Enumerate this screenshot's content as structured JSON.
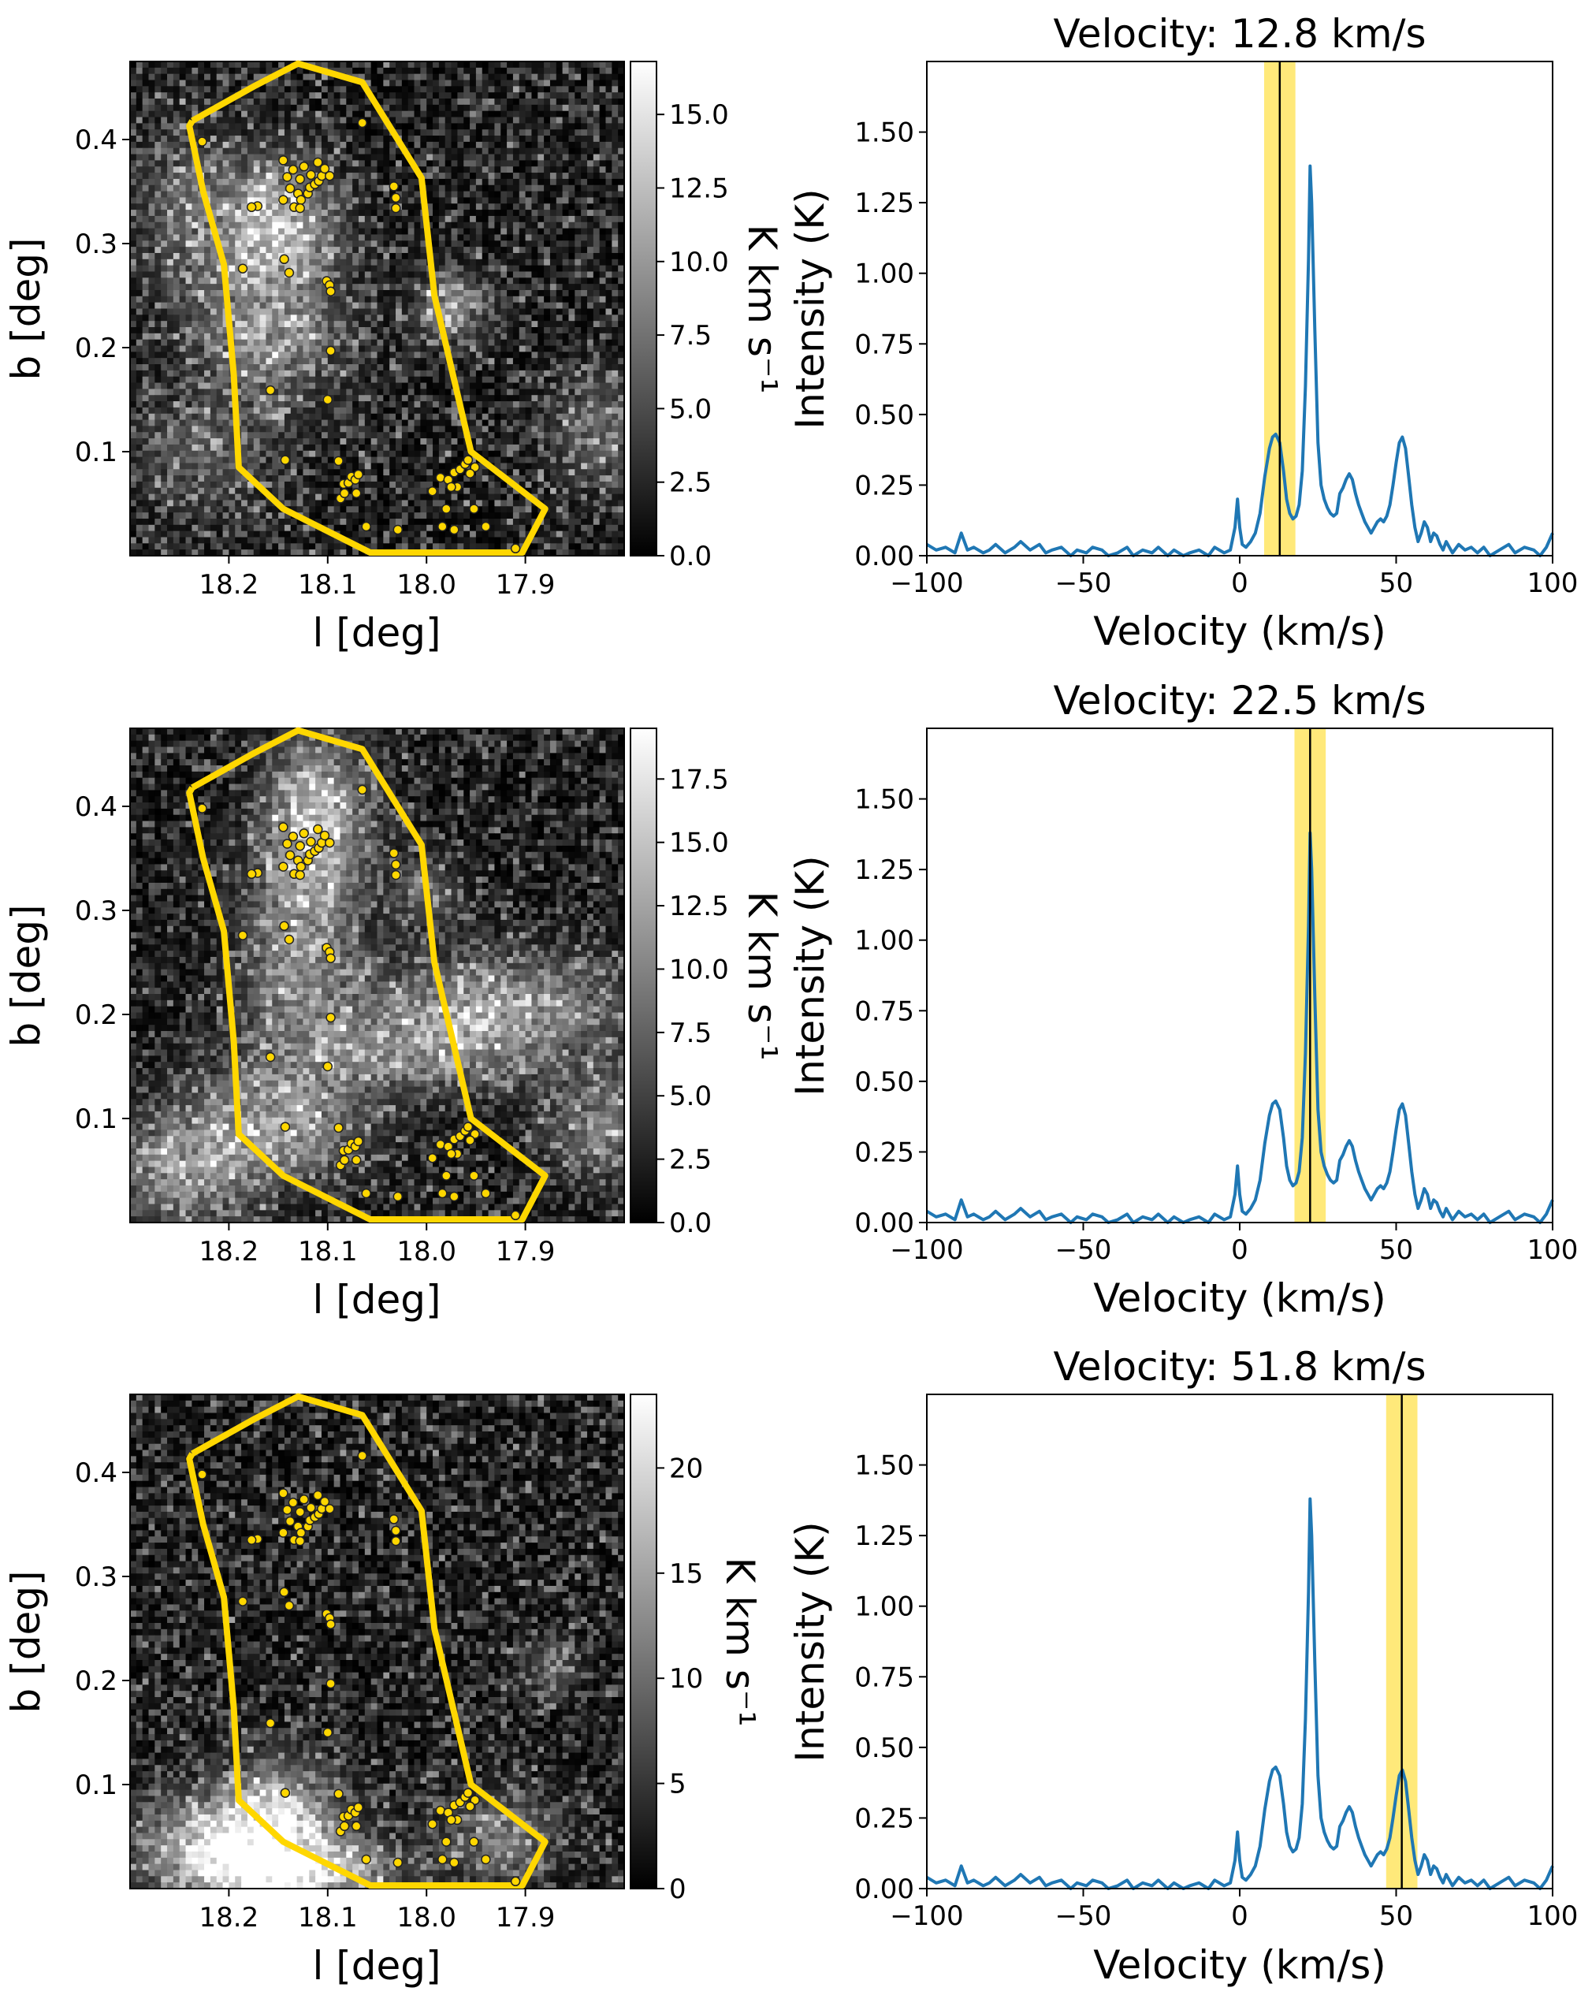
{
  "chart_data": {
    "maps": [
      {
        "type": "heatmap",
        "xlabel": "l [deg]",
        "ylabel": "b [deg]",
        "x_ticks": [
          "18.2",
          "18.1",
          "18.0",
          "17.9"
        ],
        "y_ticks": [
          "0.1",
          "0.2",
          "0.3",
          "0.4"
        ],
        "colorbar_label": "K km s⁻¹",
        "colorbar_ticks": [
          "0.0",
          "2.5",
          "5.0",
          "7.5",
          "10.0",
          "12.5",
          "15.0"
        ],
        "colorbar_range": [
          0,
          16.8
        ],
        "colormap": "gray",
        "region_color": "#FFD700"
      },
      {
        "type": "heatmap",
        "xlabel": "l [deg]",
        "ylabel": "b [deg]",
        "x_ticks": [
          "18.2",
          "18.1",
          "18.0",
          "17.9"
        ],
        "y_ticks": [
          "0.1",
          "0.2",
          "0.3",
          "0.4"
        ],
        "colorbar_label": "K km s⁻¹",
        "colorbar_ticks": [
          "0.0",
          "2.5",
          "5.0",
          "7.5",
          "10.0",
          "12.5",
          "15.0",
          "17.5"
        ],
        "colorbar_range": [
          0,
          19.5
        ],
        "colormap": "gray",
        "region_color": "#FFD700"
      },
      {
        "type": "heatmap",
        "xlabel": "l [deg]",
        "ylabel": "b [deg]",
        "x_ticks": [
          "18.2",
          "18.1",
          "18.0",
          "17.9"
        ],
        "y_ticks": [
          "0.1",
          "0.2",
          "0.3",
          "0.4"
        ],
        "colorbar_label": "K km s⁻¹",
        "colorbar_ticks": [
          "0",
          "5",
          "10",
          "15",
          "20"
        ],
        "colorbar_range": [
          0,
          23.5
        ],
        "colormap": "gray",
        "region_color": "#FFD700"
      }
    ],
    "region_polygon": {
      "l": [
        18.237,
        18.173,
        18.13,
        18.065,
        18.005,
        17.992,
        17.955,
        17.88,
        17.903,
        18.057,
        18.145,
        18.19,
        18.195,
        18.205,
        18.226,
        18.24
      ],
      "b": [
        0.418,
        0.452,
        0.473,
        0.455,
        0.363,
        0.25,
        0.1,
        0.045,
        0.003,
        0.003,
        0.045,
        0.085,
        0.173,
        0.28,
        0.35,
        0.413
      ]
    },
    "sources": {
      "l": [
        18.227,
        18.171,
        18.177,
        18.145,
        18.138,
        18.13,
        18.127,
        18.12,
        18.118,
        18.113,
        18.109,
        18.106,
        18.141,
        18.135,
        18.128,
        18.124,
        18.117,
        18.11,
        18.103,
        18.098,
        18.145,
        18.134,
        18.128,
        18.186,
        18.144,
        18.139,
        18.101,
        18.098,
        18.097,
        18.097,
        18.158,
        18.143,
        18.1,
        18.065,
        18.033,
        18.031,
        18.031,
        18.089,
        18.084,
        18.079,
        18.076,
        18.072,
        18.069,
        18.087,
        18.083,
        18.071,
        18.061,
        18.029,
        17.994,
        17.986,
        17.978,
        17.972,
        17.966,
        17.961,
        17.958,
        17.951,
        17.956,
        17.969,
        17.975,
        17.984,
        17.98,
        17.94,
        17.972,
        17.952,
        17.91
      ],
      "b": [
        0.398,
        0.336,
        0.335,
        0.342,
        0.353,
        0.348,
        0.342,
        0.348,
        0.354,
        0.357,
        0.36,
        0.365,
        0.364,
        0.371,
        0.362,
        0.374,
        0.366,
        0.378,
        0.372,
        0.365,
        0.38,
        0.335,
        0.334,
        0.276,
        0.285,
        0.272,
        0.264,
        0.26,
        0.254,
        0.197,
        0.159,
        0.092,
        0.15,
        0.416,
        0.355,
        0.344,
        0.334,
        0.091,
        0.069,
        0.07,
        0.076,
        0.073,
        0.078,
        0.055,
        0.06,
        0.06,
        0.028,
        0.025,
        0.062,
        0.075,
        0.073,
        0.08,
        0.083,
        0.088,
        0.092,
        0.085,
        0.079,
        0.066,
        0.066,
        0.028,
        0.045,
        0.028,
        0.025,
        0.045,
        0.007
      ]
    },
    "spectrum": {
      "type": "line",
      "xlabel": "Velocity (km/s)",
      "ylabel": "Intensity (K)",
      "xlim": [
        -100,
        100
      ],
      "ylim": [
        0,
        1.75
      ],
      "x_ticks": [
        "−100",
        "−50",
        "0",
        "50",
        "100"
      ],
      "y_ticks": [
        "0.00",
        "0.25",
        "0.50",
        "0.75",
        "1.00",
        "1.25",
        "1.50"
      ],
      "line_color": "#1f77b4",
      "band_color": "#FFE14D",
      "x": [
        -100,
        -97,
        -94,
        -91,
        -89,
        -87,
        -85,
        -82,
        -80,
        -78,
        -75,
        -72,
        -70,
        -67,
        -64,
        -62,
        -60,
        -57,
        -54,
        -52,
        -49,
        -47,
        -44,
        -42,
        -39,
        -36,
        -34,
        -31,
        -28,
        -26,
        -23,
        -21,
        -18,
        -16,
        -13,
        -10,
        -8,
        -5,
        -3,
        -1.5,
        -0.7,
        0,
        0.8,
        2,
        3.5,
        5,
        6.5,
        8,
        9.5,
        10.5,
        11.5,
        12.8,
        14,
        15,
        16,
        17,
        18,
        19,
        20,
        21,
        22,
        22.5,
        23,
        24,
        25,
        26,
        27,
        28,
        29,
        30,
        31,
        32,
        33,
        34,
        35,
        36,
        37,
        38,
        39,
        40,
        41,
        42,
        43,
        44,
        45,
        46,
        47,
        48,
        49,
        50,
        51,
        52,
        53,
        54,
        55,
        56,
        57,
        58,
        59,
        60,
        61,
        62,
        63,
        64,
        65,
        66,
        67,
        68,
        70,
        72,
        74,
        76,
        78,
        80,
        83,
        86,
        88,
        91,
        94,
        96,
        98,
        100
      ],
      "y": [
        0.04,
        0.02,
        0.03,
        0.01,
        0.08,
        0.02,
        0.03,
        0.01,
        0.02,
        0.04,
        0.01,
        0.03,
        0.05,
        0.02,
        0.04,
        0.01,
        0.02,
        0.03,
        0.0,
        0.02,
        0.01,
        0.03,
        0.02,
        0.0,
        0.01,
        0.03,
        0.0,
        0.02,
        0.01,
        0.03,
        0.0,
        0.02,
        0.0,
        0.01,
        0.02,
        0.0,
        0.03,
        0.01,
        0.02,
        0.1,
        0.2,
        0.1,
        0.04,
        0.03,
        0.05,
        0.08,
        0.15,
        0.28,
        0.38,
        0.42,
        0.43,
        0.4,
        0.3,
        0.2,
        0.15,
        0.13,
        0.14,
        0.18,
        0.3,
        0.6,
        1.05,
        1.38,
        1.25,
        0.8,
        0.4,
        0.25,
        0.2,
        0.17,
        0.15,
        0.14,
        0.15,
        0.22,
        0.24,
        0.27,
        0.29,
        0.27,
        0.22,
        0.18,
        0.15,
        0.12,
        0.1,
        0.08,
        0.1,
        0.12,
        0.13,
        0.12,
        0.14,
        0.18,
        0.25,
        0.33,
        0.4,
        0.42,
        0.38,
        0.28,
        0.18,
        0.1,
        0.05,
        0.08,
        0.12,
        0.1,
        0.05,
        0.08,
        0.07,
        0.04,
        0.02,
        0.05,
        0.03,
        0.01,
        0.04,
        0.02,
        0.03,
        0.01,
        0.03,
        0.0,
        0.02,
        0.04,
        0.01,
        0.03,
        0.02,
        0.0,
        0.03,
        0.08
      ]
    },
    "panels": [
      {
        "title": "Velocity: 12.8 km/s",
        "velocity": 12.8,
        "band": [
          7.8,
          17.8
        ]
      },
      {
        "title": "Velocity: 22.5 km/s",
        "velocity": 22.5,
        "band": [
          17.5,
          27.5
        ]
      },
      {
        "title": "Velocity: 51.8 km/s",
        "velocity": 51.8,
        "band": [
          46.8,
          56.8
        ]
      }
    ]
  }
}
